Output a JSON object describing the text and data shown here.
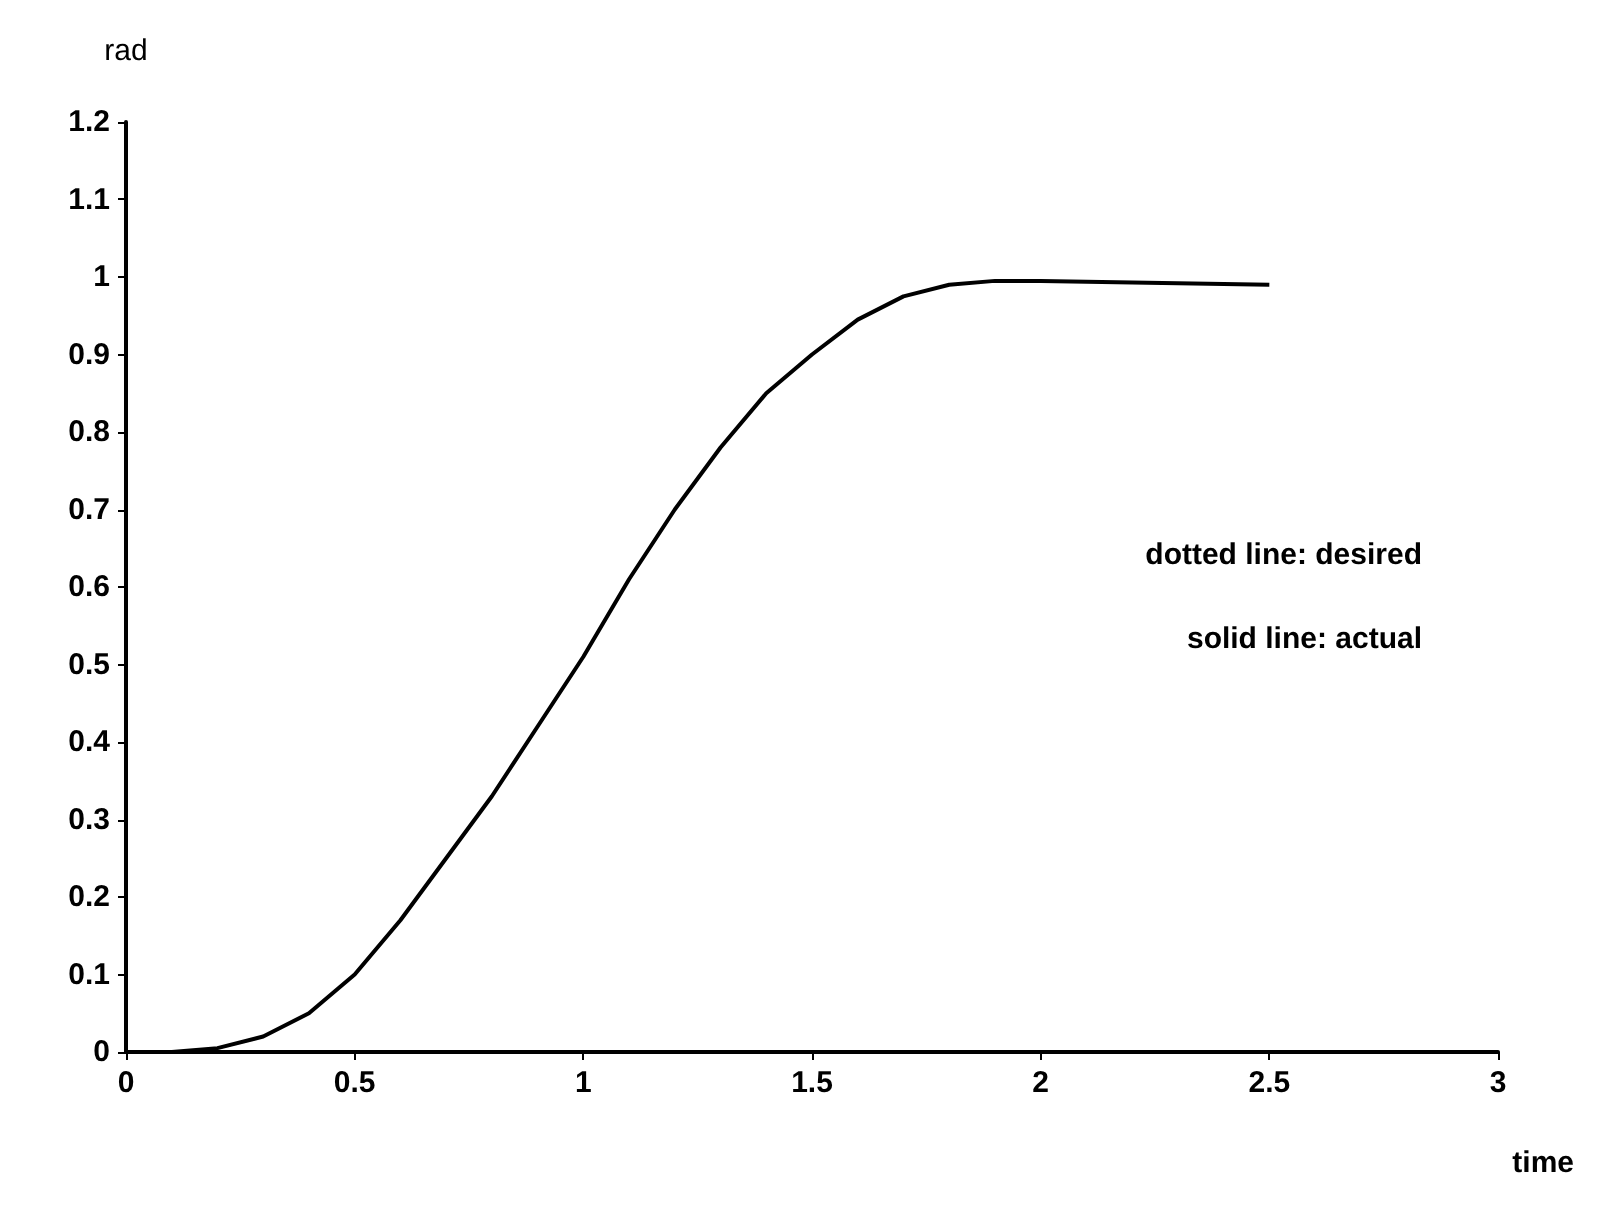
{
  "chart_data": {
    "type": "line",
    "xlabel": "time",
    "ylabel": "rad",
    "x": [
      0,
      0.1,
      0.2,
      0.3,
      0.4,
      0.5,
      0.6,
      0.7,
      0.8,
      0.9,
      1.0,
      1.1,
      1.2,
      1.3,
      1.4,
      1.5,
      1.6,
      1.7,
      1.8,
      1.9,
      2.0,
      2.2,
      2.5
    ],
    "series": [
      {
        "color": "#000000",
        "values": [
          0,
          0,
          0.005,
          0.02,
          0.05,
          0.1,
          0.17,
          0.25,
          0.33,
          0.42,
          0.51,
          0.61,
          0.7,
          0.78,
          0.85,
          0.9,
          0.945,
          0.975,
          0.99,
          0.995,
          0.995,
          0.993,
          0.99
        ]
      }
    ],
    "xlim": [
      0,
      3
    ],
    "xticks": [
      0,
      0.5,
      1,
      1.5,
      2,
      2.5,
      3
    ],
    "ylim": [
      0,
      1.2
    ],
    "yticks": [
      0,
      0.1,
      0.2,
      0.3,
      0.4,
      0.5,
      0.6,
      0.7,
      0.8,
      0.9,
      1,
      1.1,
      1.2
    ],
    "annotations": [
      "dotted line: desired",
      "solid line: actual"
    ],
    "grid": false,
    "marker": "none",
    "line_style": "solid"
  }
}
